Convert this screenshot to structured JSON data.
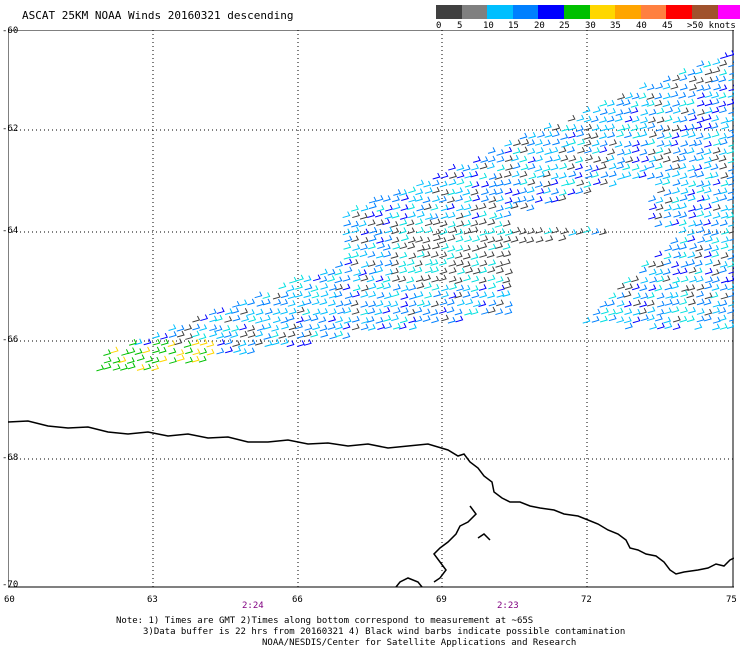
{
  "title": "ASCAT 25KM NOAA Winds 20160321 descending",
  "legend": {
    "colors": [
      "#404040",
      "#808080",
      "#00bfff",
      "#0080ff",
      "#0000ff",
      "#00c000",
      "#ffd700",
      "#ffa500",
      "#ff8040",
      "#ff0000",
      "#a0522d",
      "#ff00ff",
      "#9400d3"
    ],
    "labels": [
      "0",
      "5",
      "10",
      "15",
      "20",
      "25",
      "30",
      "35",
      "40",
      "45",
      ">50 knots"
    ]
  },
  "axes": {
    "lat_labels": [
      "-60",
      "-62",
      "-64",
      "-66",
      "-68",
      "-70"
    ],
    "lon_labels": [
      "60",
      "63",
      "66",
      "69",
      "72",
      "75"
    ]
  },
  "pass_times": [
    "2:24",
    "2:23"
  ],
  "notes": [
    "Note: 1) Times are GMT 2)Times along bottom correspond to measurement at ~65S",
    "3)Data buffer is 22 hrs from 20160321 4) Black wind barbs indicate possible contamination",
    "NOAA/NESDIS/Center for Satellite Applications and Research"
  ]
}
